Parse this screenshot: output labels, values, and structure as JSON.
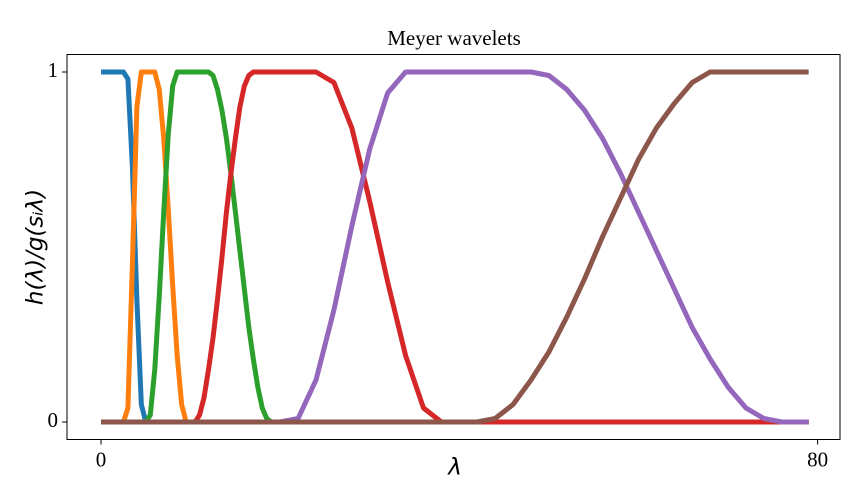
{
  "chart_data": {
    "type": "line",
    "title": "Meyer wavelets",
    "xlabel": "λ",
    "ylabel": "h(λ)/g(sᵢλ)",
    "x": [
      0,
      0.5,
      1,
      1.5,
      2,
      2.5,
      3,
      3.5,
      4,
      4.5,
      5,
      5.5,
      6,
      6.5,
      7,
      7.5,
      8,
      8.5,
      9,
      9.5,
      10,
      10.5,
      11,
      11.5,
      12,
      12.5,
      13,
      13.5,
      14,
      14.5,
      15,
      15.5,
      16,
      16.5,
      17,
      17.5,
      18,
      18.5,
      19,
      19.5,
      20,
      22,
      24,
      26,
      28,
      30,
      32,
      34,
      36,
      38,
      40,
      42,
      44,
      46,
      48,
      50,
      52,
      54,
      56,
      58,
      60,
      62,
      64,
      66,
      68,
      70,
      72,
      74,
      76,
      78,
      79
    ],
    "series": [
      {
        "color": "#1f77b4",
        "values": [
          1,
          1,
          1,
          1,
          1,
          1,
          0.98,
          0.73,
          0.35,
          0.05,
          0,
          0,
          0,
          0,
          0,
          0,
          0,
          0,
          0,
          0,
          0,
          0,
          0,
          0,
          0,
          0,
          0,
          0,
          0,
          0,
          0,
          0,
          0,
          0,
          0,
          0,
          0,
          0,
          0,
          0,
          0,
          0,
          0,
          0,
          0,
          0,
          0,
          0,
          0,
          0,
          0,
          0,
          0,
          0,
          0,
          0,
          0,
          0,
          0,
          0,
          0,
          0,
          0,
          0,
          0,
          0,
          0,
          0,
          0,
          0,
          0
        ]
      },
      {
        "color": "#ff7f0e",
        "values": [
          0,
          0,
          0,
          0,
          0,
          0,
          0.04,
          0.45,
          0.9,
          1,
          1,
          1,
          1,
          0.95,
          0.81,
          0.61,
          0.39,
          0.19,
          0.05,
          0,
          0,
          0,
          0,
          0,
          0,
          0,
          0,
          0,
          0,
          0,
          0,
          0,
          0,
          0,
          0,
          0,
          0,
          0,
          0,
          0,
          0,
          0,
          0,
          0,
          0,
          0,
          0,
          0,
          0,
          0,
          0,
          0,
          0,
          0,
          0,
          0,
          0,
          0,
          0,
          0,
          0,
          0,
          0,
          0,
          0,
          0,
          0,
          0,
          0,
          0,
          0
        ]
      },
      {
        "color": "#2ca02c",
        "values": [
          0,
          0,
          0,
          0,
          0,
          0,
          0,
          0,
          0,
          0,
          0,
          0.02,
          0.15,
          0.36,
          0.6,
          0.82,
          0.96,
          1,
          1,
          1,
          1,
          1,
          1,
          1,
          1,
          0.99,
          0.95,
          0.89,
          0.81,
          0.71,
          0.6,
          0.49,
          0.38,
          0.27,
          0.18,
          0.1,
          0.04,
          0.01,
          0,
          0,
          0,
          0,
          0,
          0,
          0,
          0,
          0,
          0,
          0,
          0,
          0,
          0,
          0,
          0,
          0,
          0,
          0,
          0,
          0,
          0,
          0,
          0,
          0,
          0,
          0,
          0,
          0,
          0,
          0,
          0,
          0
        ]
      },
      {
        "color": "#d62728",
        "values": [
          0,
          0,
          0,
          0,
          0,
          0,
          0,
          0,
          0,
          0,
          0,
          0,
          0,
          0,
          0,
          0,
          0,
          0,
          0,
          0,
          0,
          0,
          0.02,
          0.07,
          0.15,
          0.24,
          0.35,
          0.47,
          0.6,
          0.71,
          0.81,
          0.9,
          0.96,
          0.99,
          1,
          1,
          1,
          1,
          1,
          1,
          1,
          1,
          1,
          0.97,
          0.84,
          0.63,
          0.4,
          0.19,
          0.04,
          0,
          0,
          0,
          0,
          0,
          0,
          0,
          0,
          0,
          0,
          0,
          0,
          0,
          0,
          0,
          0,
          0,
          0,
          0,
          0,
          0,
          0
        ]
      },
      {
        "color": "#9467bd",
        "values": [
          0,
          0,
          0,
          0,
          0,
          0,
          0,
          0,
          0,
          0,
          0,
          0,
          0,
          0,
          0,
          0,
          0,
          0,
          0,
          0,
          0,
          0,
          0,
          0,
          0,
          0,
          0,
          0,
          0,
          0,
          0,
          0,
          0,
          0,
          0,
          0,
          0,
          0,
          0,
          0,
          0,
          0.01,
          0.12,
          0.32,
          0.56,
          0.78,
          0.94,
          1,
          1,
          1,
          1,
          1,
          1,
          1,
          1,
          0.99,
          0.95,
          0.89,
          0.81,
          0.71,
          0.6,
          0.49,
          0.38,
          0.27,
          0.18,
          0.1,
          0.04,
          0.01,
          0,
          0,
          0
        ]
      },
      {
        "color": "#8c564b",
        "values": [
          0,
          0,
          0,
          0,
          0,
          0,
          0,
          0,
          0,
          0,
          0,
          0,
          0,
          0,
          0,
          0,
          0,
          0,
          0,
          0,
          0,
          0,
          0,
          0,
          0,
          0,
          0,
          0,
          0,
          0,
          0,
          0,
          0,
          0,
          0,
          0,
          0,
          0,
          0,
          0,
          0,
          0,
          0,
          0,
          0,
          0,
          0,
          0,
          0,
          0,
          0,
          0,
          0.01,
          0.05,
          0.12,
          0.2,
          0.3,
          0.41,
          0.53,
          0.64,
          0.75,
          0.84,
          0.91,
          0.97,
          1,
          1,
          1,
          1,
          1,
          1,
          1
        ]
      }
    ],
    "xlim": [
      -3.8,
      82.5
    ],
    "ylim": [
      -0.05,
      1.05
    ],
    "xticks": [
      0,
      80
    ],
    "yticks": [
      0,
      1
    ],
    "grid": false
  }
}
